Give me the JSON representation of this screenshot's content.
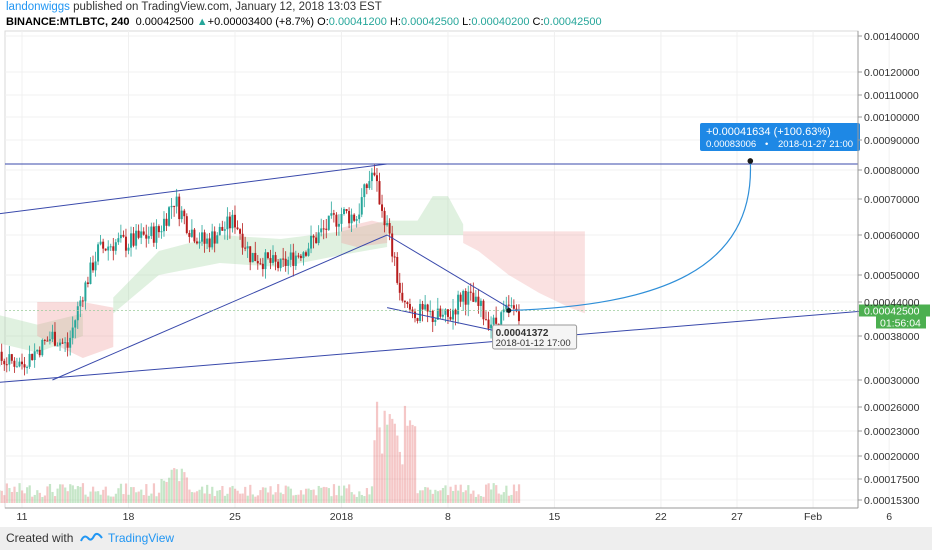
{
  "header": {
    "user": "landonwiggs",
    "published": "published on TradingView.com, January 12, 2018 13:03 EST",
    "symbol": "BINANCE:MTLBTC, 240",
    "last": "0.00042500",
    "change_arrow": "▲",
    "change": "+0.00003400 (+8.7%)",
    "o_label": "O:",
    "o_value": "0.00041200",
    "h_label": "H:",
    "h_value": "0.00042500",
    "l_label": "L:",
    "l_value": "0.00040200",
    "c_label": "C:",
    "c_value": "0.00042500"
  },
  "footer": {
    "created_with": "Created with",
    "brand": "TradingView"
  },
  "chart_data": {
    "type": "candlestick",
    "price_ticks": [
      "0.00140000",
      "0.00120000",
      "0.00110000",
      "0.00100000",
      "0.00090000",
      "0.00080000",
      "0.00070000",
      "0.00060000",
      "0.00050000",
      "0.00044000",
      "0.00038000",
      "0.00030000",
      "0.00026000",
      "0.00023000",
      "0.00020000",
      "0.00017500",
      "0.00015300"
    ],
    "x_ticks": [
      "11",
      "18",
      "25",
      "2018",
      "8",
      "15",
      "22",
      "27",
      "Feb",
      "6"
    ],
    "x_tick_dates": [
      "2017-12-11",
      "2017-12-18",
      "2017-12-25",
      "2018-01-01",
      "2018-01-08",
      "2018-01-15",
      "2018-01-22",
      "2018-01-27",
      "2018-02-01",
      "2018-02-06"
    ],
    "last_price_label": "0.00042500",
    "countdown_label": "01:56:04",
    "projection": {
      "change_label": "+0.00041634 (+100.63%)",
      "detail_price": "0.00083006",
      "detail_date": "2018-01-27  21:00",
      "target": 0.00083006,
      "target_date": "2018-01-27 21:00"
    },
    "cursor_tooltip": {
      "price": "0.00041372",
      "date": "2018-01-12 17:00"
    },
    "horizontal_level": 0.00082,
    "trendlines": [
      {
        "name": "upper-channel",
        "from": [
          "2017-12-06",
          0.00064
        ],
        "to": [
          "2018-01-04",
          0.00082
        ]
      },
      {
        "name": "rising-support",
        "from": [
          "2017-12-13",
          0.0003
        ],
        "to": [
          "2018-01-04",
          0.0006
        ]
      },
      {
        "name": "lower-channel",
        "from": [
          "2017-12-06",
          0.00029
        ],
        "to": [
          "2018-02-07",
          0.00043
        ]
      },
      {
        "name": "wedge-top",
        "from": [
          "2018-01-04",
          0.0006
        ],
        "to": [
          "2018-01-12",
          0.00043
        ]
      },
      {
        "name": "wedge-bottom",
        "from": [
          "2018-01-04",
          0.00043
        ],
        "to": [
          "2018-01-11",
          0.00039
        ]
      }
    ],
    "series": [
      {
        "name": "MTLBTC candles",
        "points": [
          [
            "2017-12-07",
            0.00033
          ],
          [
            "2017-12-09",
            0.00034
          ],
          [
            "2017-12-11",
            0.00033
          ],
          [
            "2017-12-13",
            0.00038
          ],
          [
            "2017-12-14",
            0.00036
          ],
          [
            "2017-12-16",
            0.00056
          ],
          [
            "2017-12-17",
            0.00058
          ],
          [
            "2017-12-18",
            0.00058
          ],
          [
            "2017-12-20",
            0.00061
          ],
          [
            "2017-12-21",
            0.0007
          ],
          [
            "2017-12-22",
            0.00062
          ],
          [
            "2017-12-23",
            0.00058
          ],
          [
            "2017-12-25",
            0.00064
          ],
          [
            "2017-12-26",
            0.00055
          ],
          [
            "2017-12-28",
            0.00052
          ],
          [
            "2017-12-30",
            0.00058
          ],
          [
            "2018-01-01",
            0.00066
          ],
          [
            "2018-01-02",
            0.00065
          ],
          [
            "2018-01-03",
            0.00079
          ],
          [
            "2018-01-04",
            0.00062
          ],
          [
            "2018-01-05",
            0.00043
          ],
          [
            "2018-01-06",
            0.00042
          ],
          [
            "2018-01-08",
            0.00041
          ],
          [
            "2018-01-09",
            0.00046
          ],
          [
            "2018-01-10",
            0.00043
          ],
          [
            "2018-01-11",
            0.0004
          ],
          [
            "2018-01-12",
            0.000425
          ]
        ]
      }
    ]
  }
}
